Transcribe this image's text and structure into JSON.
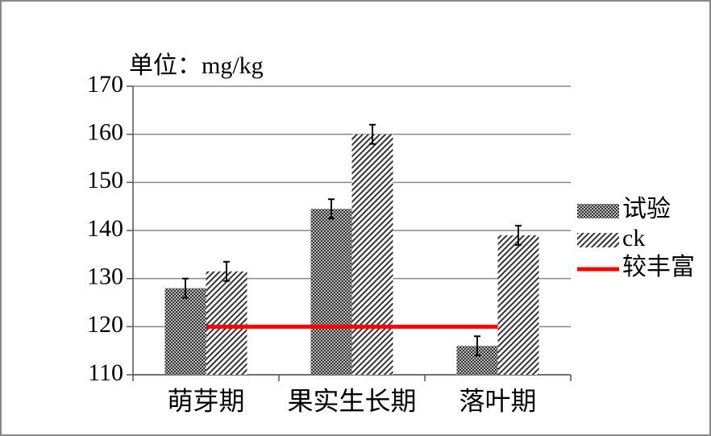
{
  "chart_data": {
    "type": "bar",
    "y_unit_label": "单位：mg/kg",
    "categories": [
      "萌芽期",
      "果实生长期",
      "落叶期"
    ],
    "series": [
      {
        "name": "试验",
        "color": "#333333",
        "pattern": "checker",
        "values": [
          128,
          144.5,
          116
        ],
        "errors": [
          2,
          2,
          2
        ]
      },
      {
        "name": "ck",
        "color": "#333333",
        "pattern": "diagonal",
        "values": [
          131.5,
          160,
          139
        ],
        "errors": [
          2,
          2,
          2
        ]
      }
    ],
    "reference_line": {
      "name": "较丰富",
      "color": "#ff0000",
      "value": 120
    },
    "ylim": [
      110,
      170
    ],
    "yticks": [
      110,
      120,
      130,
      140,
      150,
      160,
      170
    ],
    "grid": true
  }
}
